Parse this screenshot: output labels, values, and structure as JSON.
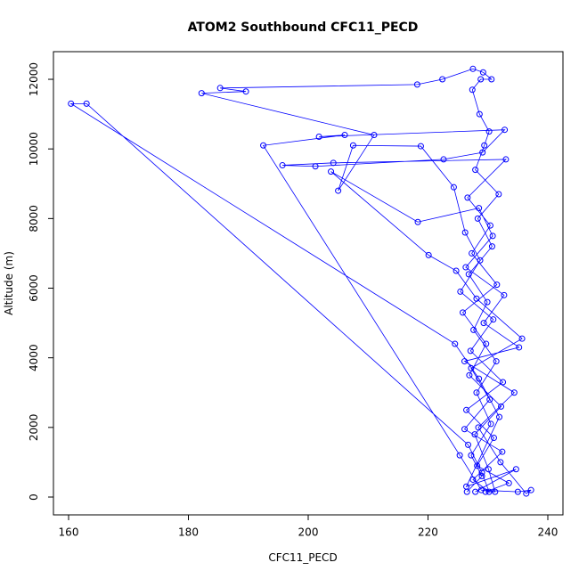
{
  "chart_data": {
    "type": "line",
    "title": "ATOM2 Southbound CFC11_PECD",
    "x_label": "CFC11_PECD",
    "y_label": "Altitude (m)",
    "color": "#0000ff",
    "markers": true,
    "xlim": [
      157.47,
      242.53
    ],
    "ylim": [
      -512,
      12794
    ],
    "xticks": [
      160,
      180,
      200,
      220,
      240
    ],
    "yticks": [
      0,
      2000,
      4000,
      6000,
      8000,
      10000,
      12000
    ],
    "x": [
      226.5,
      229,
      227.2,
      230.5,
      228.1,
      231.4,
      227.6,
      229.9,
      226.8,
      230.7,
      228.3,
      231.8,
      227.9,
      229.4,
      230.2,
      228.6,
      227.4,
      228.8,
      230.6,
      229.2,
      227.5,
      222.4,
      218.2,
      185.3,
      189.6,
      182.2,
      211,
      205,
      207.5,
      218.8,
      224.3,
      226.2,
      228.7,
      225.4,
      230.9,
      227.1,
      232.5,
      226.4,
      231,
      228.2,
      233.5,
      229.6,
      231.2,
      230.1,
      227.8,
      232.2,
      226.9,
      229.7,
      225.8,
      231.5,
      227.3,
      230.4,
      226.6,
      233,
      204.2,
      195.7,
      201.2,
      222.6,
      229.1,
      232.8,
      201.8,
      206.1,
      192.5,
      225.3,
      228.9,
      235,
      237.2,
      236.4,
      232.1,
      228.4,
      234.4,
      226.1,
      235.2,
      229.3,
      232.7,
      226.3,
      230.8,
      228.5,
      218.3,
      203.8,
      220.1,
      224.7,
      228.1,
      235.7,
      227.2,
      230.3,
      226.1,
      232.4,
      227.5,
      230.2,
      229,
      226.7,
      163,
      160.4,
      224.5,
      228.5,
      231.9,
      226.4,
      234.7,
      227.9
    ],
    "y": [
      150,
      600,
      1200,
      2100,
      3000,
      3900,
      4800,
      5600,
      6400,
      7200,
      8000,
      8700,
      9400,
      10100,
      10500,
      11000,
      11700,
      12000,
      12000,
      12200,
      12300,
      12000,
      11850,
      11750,
      11650,
      11600,
      10400,
      8800,
      10100,
      10080,
      8900,
      7600,
      6800,
      5900,
      5100,
      4200,
      3300,
      2500,
      1700,
      900,
      400,
      150,
      150,
      800,
      1800,
      2600,
      3500,
      4400,
      5300,
      6100,
      7000,
      7800,
      8600,
      9700,
      9600,
      9530,
      9500,
      9700,
      9900,
      10550,
      10350,
      10400,
      10100,
      1200,
      200,
      150,
      200,
      100,
      1000,
      2000,
      3000,
      3900,
      4300,
      5000,
      5800,
      6600,
      7500,
      8300,
      7900,
      9350,
      6950,
      6500,
      5700,
      4550,
      3700,
      2800,
      1950,
      1300,
      500,
      150,
      700,
      1500,
      11300,
      11300,
      4400,
      3400,
      2300,
      300,
      800,
      150
    ]
  }
}
